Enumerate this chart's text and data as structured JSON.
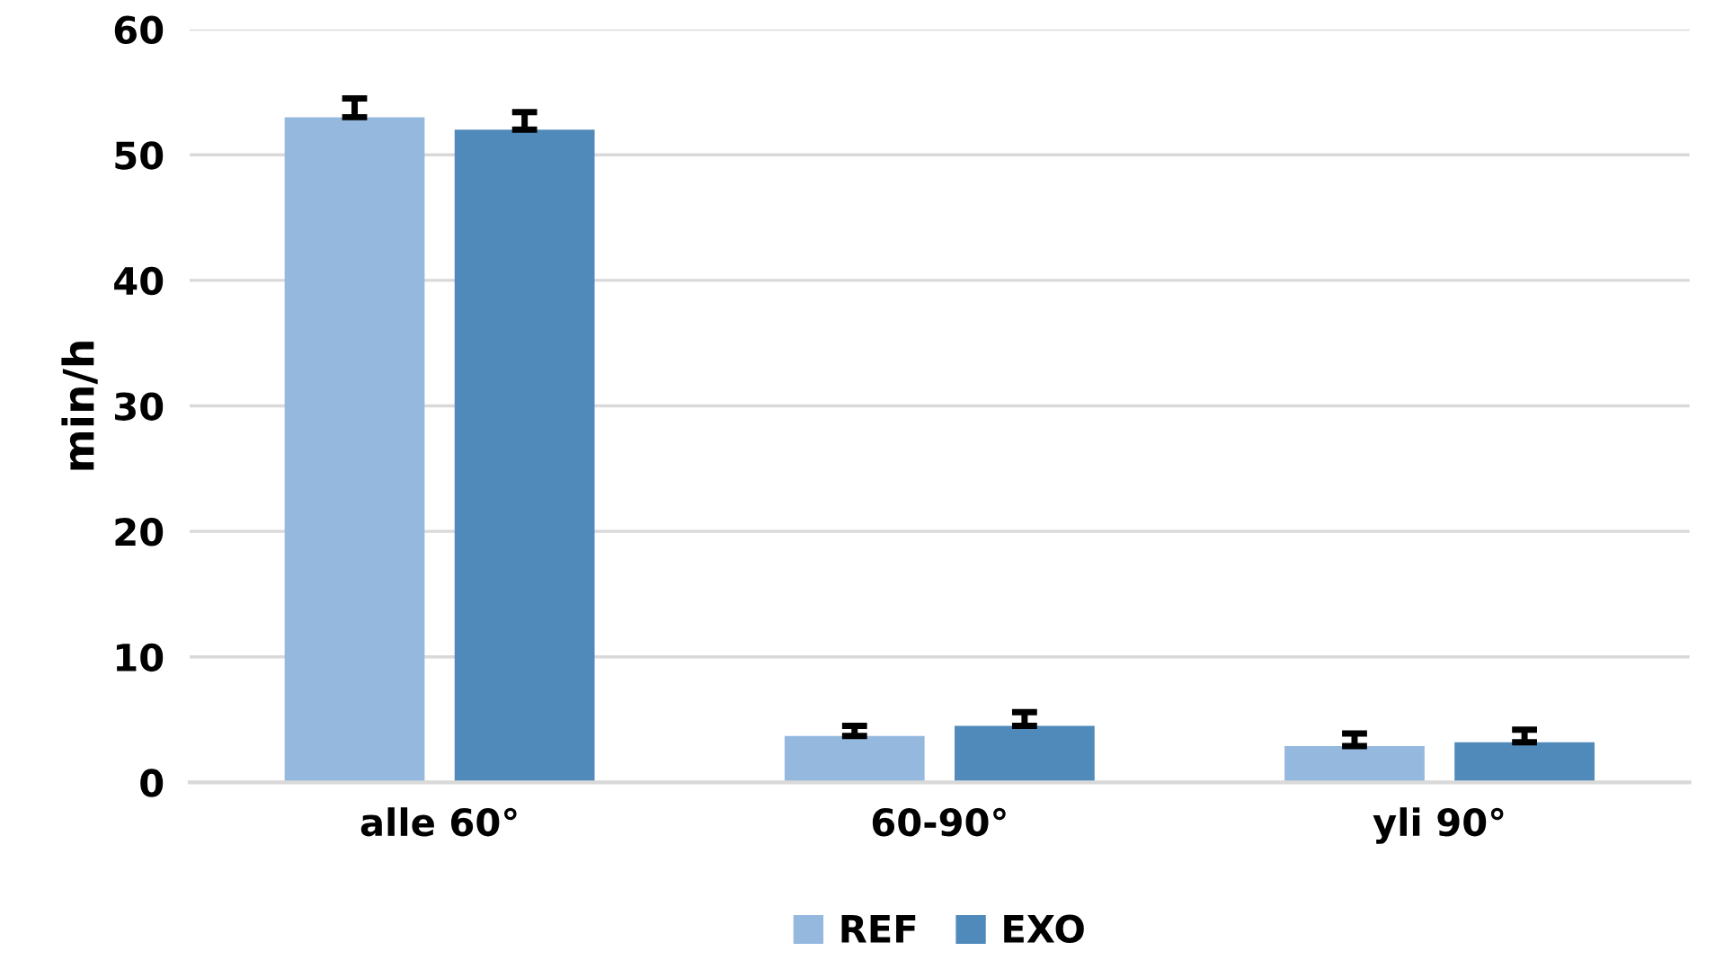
{
  "chart_data": {
    "type": "bar",
    "ylabel": "min/h",
    "categories": [
      "alle 60°",
      "60-90°",
      "yli 90°"
    ],
    "series": [
      {
        "name": "REF",
        "color": "#95b8df",
        "values": [
          53.0,
          3.7,
          2.9
        ],
        "errors": [
          [
            53.0,
            54.5
          ],
          [
            3.7,
            4.5
          ],
          [
            2.9,
            3.9
          ]
        ]
      },
      {
        "name": "EXO",
        "color": "#4f8aba",
        "values": [
          52.0,
          4.5,
          3.2
        ],
        "errors": [
          [
            52.0,
            53.4
          ],
          [
            4.5,
            5.6
          ],
          [
            3.2,
            4.2
          ]
        ]
      }
    ],
    "ylim": [
      0,
      60
    ],
    "yticks": [
      0,
      10,
      20,
      30,
      40,
      50,
      60
    ],
    "grid": "y",
    "legend": "bottom"
  }
}
